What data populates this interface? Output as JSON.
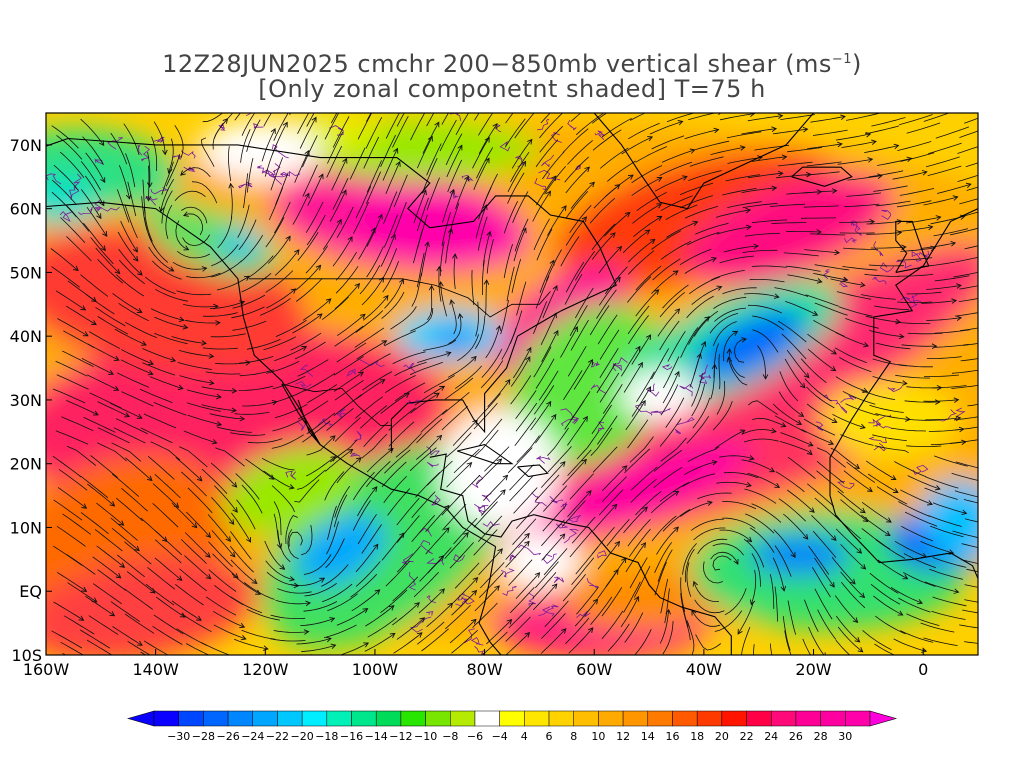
{
  "title": {
    "line1_prefix": "12Z28JUN2025 cmchr 200−850mb vertical shear (ms",
    "line1_sup": "−1",
    "line1_suffix": ")",
    "line2": "[Only zonal componetnt shaded] T=75 h"
  },
  "map": {
    "lat_ticks": [
      "70N",
      "60N",
      "50N",
      "40N",
      "30N",
      "20N",
      "10N",
      "EQ",
      "10S"
    ],
    "lon_ticks": [
      "160W",
      "140W",
      "120W",
      "100W",
      "80W",
      "60W",
      "40W",
      "20W",
      "0"
    ],
    "lat_range": [
      -10,
      75
    ],
    "lon_range": [
      -160,
      10
    ],
    "field": "zonal vertical shear 200-850mb",
    "overlays": [
      "streamlines",
      "coastlines",
      "state-boundaries",
      "purple-contours"
    ]
  },
  "colorbar": {
    "labels": [
      "−30",
      "−28",
      "−26",
      "−24",
      "−22",
      "−20",
      "−18",
      "−16",
      "−14",
      "−12",
      "−10",
      "−8",
      "−6",
      "−4",
      "4",
      "6",
      "8",
      "10",
      "12",
      "14",
      "16",
      "18",
      "20",
      "22",
      "24",
      "26",
      "28",
      "30"
    ],
    "colors": [
      "#0a00ff",
      "#0046ff",
      "#0066ff",
      "#0086ff",
      "#00a6ff",
      "#00c8ff",
      "#00eeff",
      "#00f0b8",
      "#00e68c",
      "#00dc5a",
      "#28e600",
      "#78e600",
      "#b4eb00",
      "#ffffff",
      "#ffff00",
      "#ffe600",
      "#ffd200",
      "#ffbe00",
      "#ffaa00",
      "#ff9600",
      "#ff7a00",
      "#ff5a00",
      "#ff3a00",
      "#ff1400",
      "#ff0046",
      "#ff0a78",
      "#ff0096",
      "#ff00a0",
      "#ff00aa"
    ],
    "low_arrow_color": "#0a00ff",
    "high_arrow_color": "#ff00dc"
  }
}
